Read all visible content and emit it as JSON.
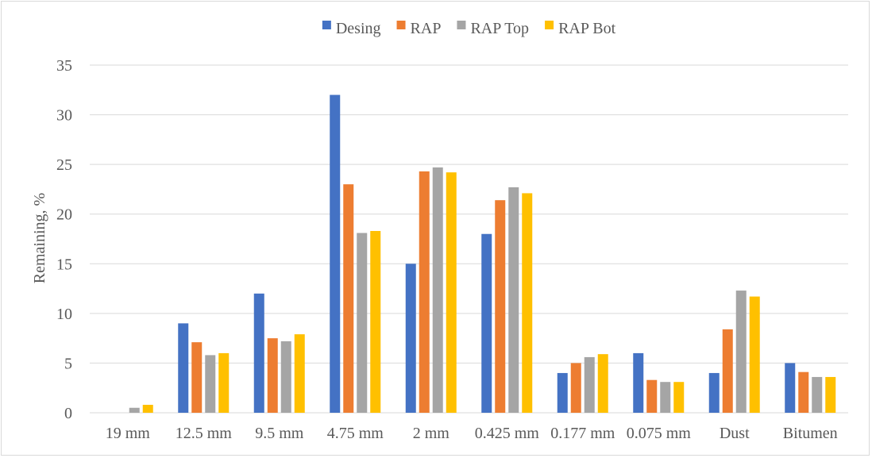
{
  "chart_data": {
    "type": "bar",
    "title": "",
    "xlabel": "",
    "ylabel": "Remaining, %",
    "ylim": [
      0,
      35
    ],
    "yticks": [
      0,
      5,
      10,
      15,
      20,
      25,
      30,
      35
    ],
    "grid": true,
    "legend_position": "top",
    "categories": [
      "19 mm",
      "12.5 mm",
      "9.5 mm",
      "4.75 mm",
      "2 mm",
      "0.425 mm",
      "0.177 mm",
      "0.075 mm",
      "Dust",
      "Bitumen"
    ],
    "series": [
      {
        "name": "Desing",
        "color": "#4472c4",
        "values": [
          0,
          9.0,
          12.0,
          32.0,
          15.0,
          18.0,
          4.0,
          6.0,
          4.0,
          5.0
        ]
      },
      {
        "name": "RAP",
        "color": "#ed7d31",
        "values": [
          0,
          7.1,
          7.5,
          23.0,
          24.3,
          21.4,
          5.0,
          3.3,
          8.4,
          4.1
        ]
      },
      {
        "name": "RAP Top",
        "color": "#a5a5a5",
        "values": [
          0.5,
          5.8,
          7.2,
          18.1,
          24.7,
          22.7,
          5.6,
          3.1,
          12.3,
          3.6
        ]
      },
      {
        "name": "RAP Bot",
        "color": "#ffc000",
        "values": [
          0.8,
          6.0,
          7.9,
          18.3,
          24.2,
          22.1,
          5.9,
          3.1,
          11.7,
          3.6
        ]
      }
    ]
  }
}
